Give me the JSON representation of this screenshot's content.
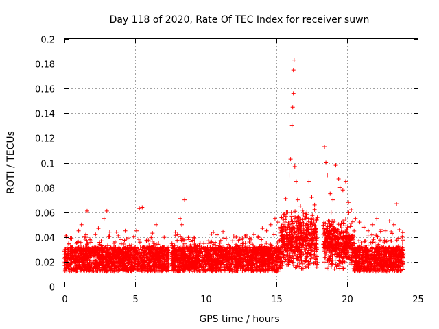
{
  "chart_data": {
    "type": "scatter",
    "title": "Day 118 of 2020, Rate Of TEC Index for receiver suwn",
    "xlabel": "GPS time / hours",
    "ylabel": "ROTI / TECUs",
    "xlim": [
      0,
      25
    ],
    "ylim": [
      0,
      0.2
    ],
    "xticks": [
      "0",
      "5",
      "10",
      "15",
      "20",
      "25"
    ],
    "yticks": [
      "0",
      "0.02",
      "0.04",
      "0.06",
      "0.08",
      "0.1",
      "0.12",
      "0.14",
      "0.16",
      "0.18",
      "0.2"
    ],
    "grid": true,
    "marker": "+",
    "color": "#ff0000",
    "gaps_hours": [
      [
        7.4,
        7.6
      ],
      [
        17.9,
        18.3
      ]
    ],
    "series": [
      {
        "name": "ROTI",
        "x": [
          0.1,
          0.3,
          0.5,
          0.8,
          1.0,
          1.2,
          1.4,
          1.6,
          1.8,
          2.0,
          2.2,
          2.4,
          2.6,
          2.8,
          3.0,
          3.2,
          3.5,
          3.8,
          4.0,
          4.3,
          4.6,
          4.9,
          5.1,
          5.3,
          5.5,
          5.8,
          6.0,
          6.3,
          6.5,
          6.8,
          7.0,
          7.2,
          7.8,
          8.0,
          8.2,
          8.3,
          8.5,
          8.8,
          9.0,
          9.3,
          9.6,
          9.9,
          10.2,
          10.5,
          10.8,
          11.0,
          11.3,
          11.6,
          11.9,
          12.2,
          12.5,
          12.8,
          13.1,
          13.4,
          13.7,
          14.0,
          14.3,
          14.6,
          14.9,
          15.1,
          15.3,
          15.5,
          15.7,
          15.9,
          16.0,
          16.1,
          16.15,
          16.2,
          16.2,
          16.25,
          16.3,
          16.4,
          16.5,
          16.7,
          16.9,
          17.1,
          17.3,
          17.5,
          17.7,
          18.4,
          18.5,
          18.6,
          18.8,
          19.0,
          19.2,
          19.4,
          19.5,
          19.7,
          19.9,
          20.1,
          20.3,
          20.6,
          20.9,
          21.2,
          21.5,
          21.8,
          22.1,
          22.4,
          22.7,
          23.0,
          23.2,
          23.3,
          23.5,
          23.7,
          23.9
        ],
        "y": [
          0.041,
          0.035,
          0.028,
          0.03,
          0.045,
          0.05,
          0.04,
          0.061,
          0.038,
          0.032,
          0.042,
          0.047,
          0.037,
          0.055,
          0.061,
          0.044,
          0.035,
          0.041,
          0.038,
          0.045,
          0.033,
          0.04,
          0.045,
          0.063,
          0.064,
          0.037,
          0.03,
          0.035,
          0.05,
          0.028,
          0.026,
          0.024,
          0.025,
          0.042,
          0.055,
          0.05,
          0.07,
          0.038,
          0.029,
          0.033,
          0.035,
          0.03,
          0.037,
          0.028,
          0.033,
          0.035,
          0.031,
          0.034,
          0.037,
          0.033,
          0.038,
          0.035,
          0.039,
          0.042,
          0.04,
          0.047,
          0.045,
          0.05,
          0.055,
          0.052,
          0.048,
          0.058,
          0.06,
          0.09,
          0.103,
          0.13,
          0.145,
          0.156,
          0.175,
          0.183,
          0.097,
          0.085,
          0.07,
          0.065,
          0.06,
          0.056,
          0.085,
          0.072,
          0.066,
          0.113,
          0.1,
          0.09,
          0.075,
          0.07,
          0.098,
          0.087,
          0.08,
          0.078,
          0.085,
          0.068,
          0.062,
          0.055,
          0.052,
          0.048,
          0.045,
          0.05,
          0.055,
          0.046,
          0.045,
          0.053,
          0.043,
          0.05,
          0.067,
          0.046,
          0.04
        ]
      }
    ]
  }
}
